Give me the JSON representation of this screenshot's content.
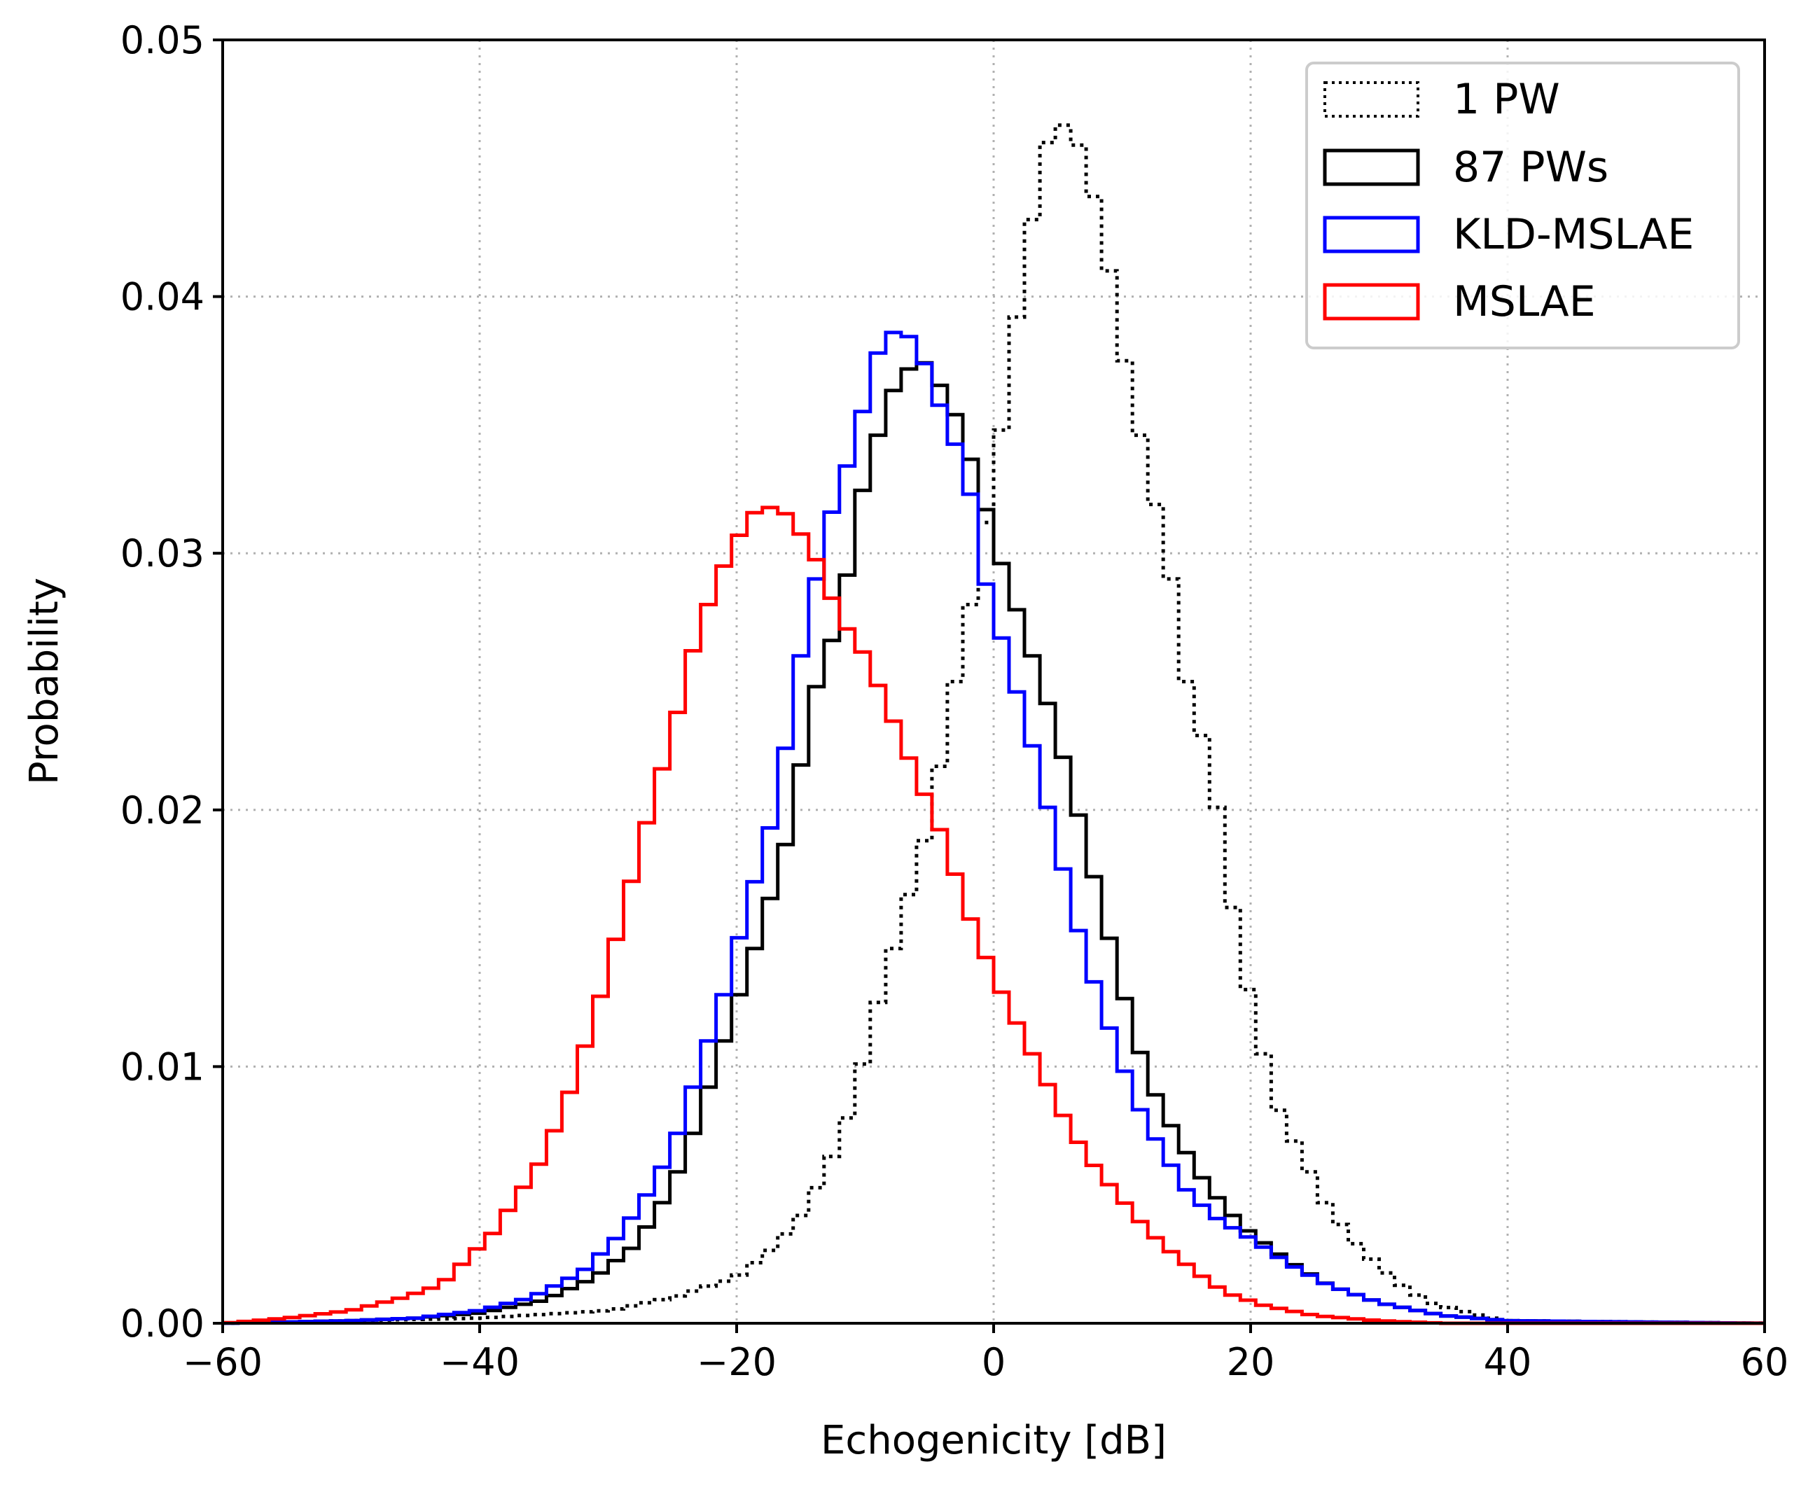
{
  "chart_data": {
    "type": "histogram-step",
    "title": "",
    "xlabel": "Echogenicity [dB]",
    "ylabel": "Probability",
    "xlim": [
      -60,
      60
    ],
    "ylim": [
      0,
      0.05
    ],
    "xticks": [
      -60,
      -40,
      -20,
      0,
      20,
      40,
      60
    ],
    "xtick_labels": [
      "−60",
      "−40",
      "−20",
      "0",
      "20",
      "40",
      "60"
    ],
    "yticks": [
      0,
      0.01,
      0.02,
      0.03,
      0.04,
      0.05
    ],
    "ytick_labels": [
      "0.00",
      "0.01",
      "0.02",
      "0.03",
      "0.04",
      "0.05"
    ],
    "grid": true,
    "legend_position": "top-right",
    "series": [
      {
        "name": "1 PW",
        "color": "#000000",
        "style": "dotted",
        "points": [
          [
            -60,
            0
          ],
          [
            -40,
            0.0002
          ],
          [
            -30,
            0.0005
          ],
          [
            -25,
            0.001
          ],
          [
            -20,
            0.0018
          ],
          [
            -17,
            0.003
          ],
          [
            -15,
            0.0042
          ],
          [
            -13,
            0.006
          ],
          [
            -11,
            0.0085
          ],
          [
            -9,
            0.0125
          ],
          [
            -7,
            0.016
          ],
          [
            -5,
            0.0195
          ],
          [
            -3,
            0.025
          ],
          [
            -1,
            0.03
          ],
          [
            1,
            0.036
          ],
          [
            2,
            0.04
          ],
          [
            3,
            0.043
          ],
          [
            4,
            0.0458
          ],
          [
            5,
            0.0468
          ],
          [
            6,
            0.0465
          ],
          [
            7,
            0.0455
          ],
          [
            8,
            0.0435
          ],
          [
            9,
            0.041
          ],
          [
            10,
            0.038
          ],
          [
            11,
            0.0355
          ],
          [
            13,
            0.031
          ],
          [
            14,
            0.0285
          ],
          [
            15,
            0.025
          ],
          [
            17,
            0.0215
          ],
          [
            18,
            0.018
          ],
          [
            19,
            0.015
          ],
          [
            20,
            0.0125
          ],
          [
            21,
            0.0105
          ],
          [
            22,
            0.0085
          ],
          [
            24,
            0.0065
          ],
          [
            26,
            0.0045
          ],
          [
            28,
            0.0032
          ],
          [
            30,
            0.0022
          ],
          [
            32,
            0.0014
          ],
          [
            34,
            0.0008
          ],
          [
            37,
            0.0004
          ],
          [
            40,
            0.0001
          ],
          [
            60,
            0
          ]
        ]
      },
      {
        "name": "87 PWs",
        "color": "#000000",
        "style": "solid",
        "points": [
          [
            -60,
            0
          ],
          [
            -50,
            0.0001
          ],
          [
            -45,
            0.0002
          ],
          [
            -40,
            0.0004
          ],
          [
            -35,
            0.0009
          ],
          [
            -31,
            0.0018
          ],
          [
            -28,
            0.003
          ],
          [
            -26,
            0.0045
          ],
          [
            -24,
            0.0065
          ],
          [
            -22,
            0.0095
          ],
          [
            -20,
            0.0125
          ],
          [
            -18,
            0.0155
          ],
          [
            -16,
            0.019
          ],
          [
            -14,
            0.0245
          ],
          [
            -12,
            0.0275
          ],
          [
            -10,
            0.033
          ],
          [
            -8,
            0.0362
          ],
          [
            -6,
            0.0376
          ],
          [
            -5,
            0.0373
          ],
          [
            -3,
            0.0354
          ],
          [
            -1,
            0.0325
          ],
          [
            0,
            0.0305
          ],
          [
            2,
            0.0275
          ],
          [
            4,
            0.0245
          ],
          [
            6,
            0.021
          ],
          [
            8,
            0.017
          ],
          [
            10,
            0.013
          ],
          [
            12,
            0.0095
          ],
          [
            14,
            0.0075
          ],
          [
            16,
            0.0058
          ],
          [
            18,
            0.0045
          ],
          [
            20,
            0.0035
          ],
          [
            23,
            0.0024
          ],
          [
            26,
            0.0015
          ],
          [
            30,
            0.0008
          ],
          [
            35,
            0.0003
          ],
          [
            40,
            0.0001
          ],
          [
            60,
            0
          ]
        ]
      },
      {
        "name": "KLD-MSLAE",
        "color": "#0000ff",
        "style": "solid",
        "points": [
          [
            -60,
            0
          ],
          [
            -50,
            0.0001
          ],
          [
            -45,
            0.0002
          ],
          [
            -40,
            0.0005
          ],
          [
            -36,
            0.001
          ],
          [
            -32,
            0.002
          ],
          [
            -29,
            0.0035
          ],
          [
            -27,
            0.005
          ],
          [
            -25,
            0.0068
          ],
          [
            -23,
            0.0098
          ],
          [
            -21,
            0.0128
          ],
          [
            -19,
            0.0165
          ],
          [
            -17,
            0.02
          ],
          [
            -15,
            0.026
          ],
          [
            -13,
            0.031
          ],
          [
            -11,
            0.034
          ],
          [
            -9,
            0.0378
          ],
          [
            -7.5,
            0.0388
          ],
          [
            -6,
            0.0382
          ],
          [
            -4,
            0.0355
          ],
          [
            -2,
            0.033
          ],
          [
            -1,
            0.0295
          ],
          [
            1,
            0.026
          ],
          [
            3,
            0.0225
          ],
          [
            5,
            0.0185
          ],
          [
            7,
            0.0145
          ],
          [
            9,
            0.0115
          ],
          [
            11,
            0.0087
          ],
          [
            13,
            0.0068
          ],
          [
            15,
            0.0052
          ],
          [
            17,
            0.0042
          ],
          [
            20,
            0.0033
          ],
          [
            23,
            0.0023
          ],
          [
            26,
            0.0015
          ],
          [
            30,
            0.0008
          ],
          [
            35,
            0.0003
          ],
          [
            40,
            0.0001
          ],
          [
            60,
            0
          ]
        ]
      },
      {
        "name": "MSLAE",
        "color": "#ff0000",
        "style": "solid",
        "points": [
          [
            -60,
            0
          ],
          [
            -55,
            0.0002
          ],
          [
            -50,
            0.0005
          ],
          [
            -46,
            0.001
          ],
          [
            -43,
            0.0015
          ],
          [
            -41,
            0.0025
          ],
          [
            -39,
            0.0035
          ],
          [
            -37,
            0.005
          ],
          [
            -35,
            0.0065
          ],
          [
            -33,
            0.009
          ],
          [
            -31,
            0.012
          ],
          [
            -29,
            0.0157
          ],
          [
            -27,
            0.0195
          ],
          [
            -25,
            0.023
          ],
          [
            -23,
            0.027
          ],
          [
            -21,
            0.0295
          ],
          [
            -19,
            0.0315
          ],
          [
            -17.5,
            0.0318
          ],
          [
            -16,
            0.0315
          ],
          [
            -14,
            0.03
          ],
          [
            -12,
            0.0275
          ],
          [
            -10,
            0.026
          ],
          [
            -8,
            0.0237
          ],
          [
            -6,
            0.0213
          ],
          [
            -4,
            0.019
          ],
          [
            -2,
            0.016
          ],
          [
            0,
            0.0135
          ],
          [
            2,
            0.0115
          ],
          [
            4,
            0.0095
          ],
          [
            6,
            0.0075
          ],
          [
            8,
            0.006
          ],
          [
            10,
            0.0048
          ],
          [
            12,
            0.0036
          ],
          [
            14,
            0.0027
          ],
          [
            16,
            0.0019
          ],
          [
            18,
            0.0012
          ],
          [
            21,
            0.0007
          ],
          [
            25,
            0.0003
          ],
          [
            30,
            0.0001
          ],
          [
            35,
            0
          ],
          [
            60,
            0
          ]
        ]
      }
    ]
  }
}
